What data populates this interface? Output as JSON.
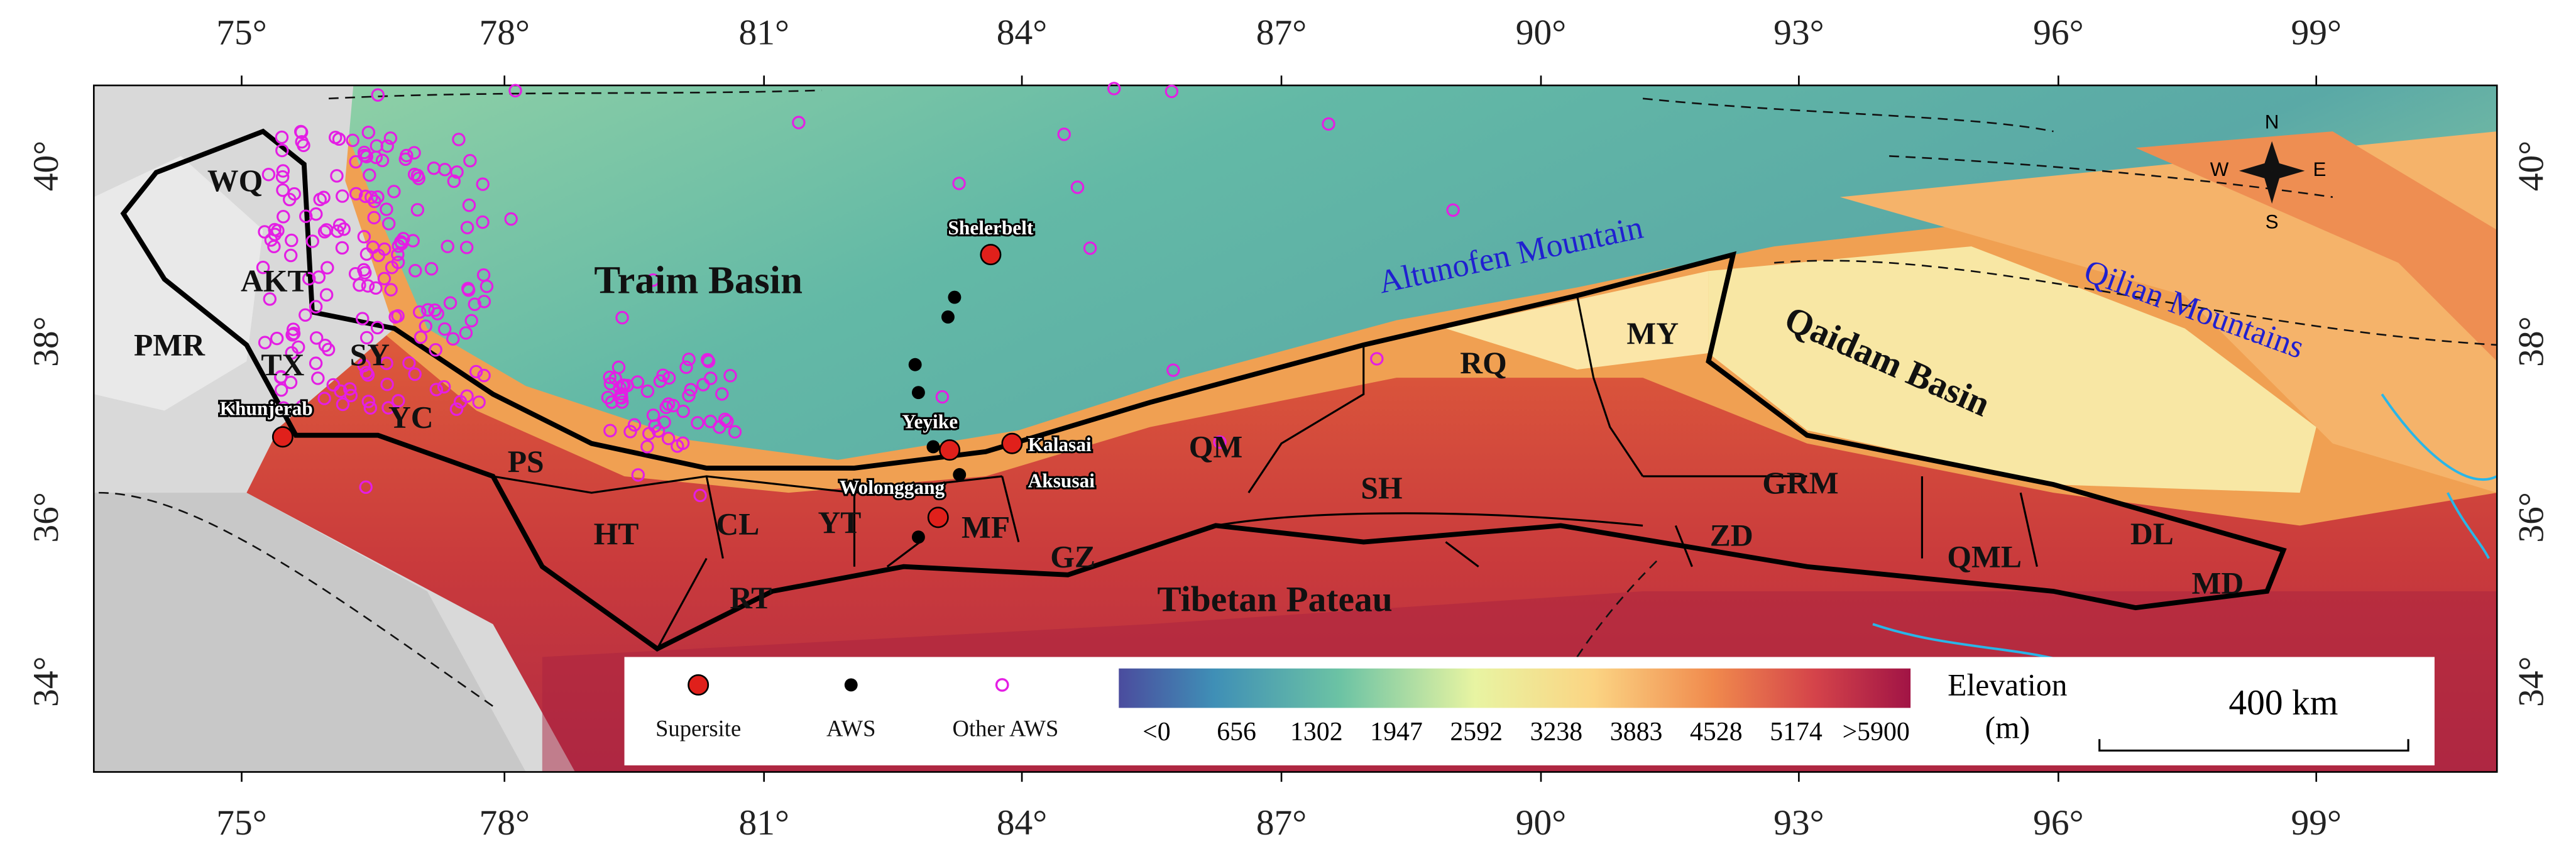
{
  "map": {
    "lon_labels": [
      "75°",
      "78°",
      "81°",
      "84°",
      "87°",
      "90°",
      "93°",
      "96°",
      "99°"
    ],
    "lat_labels": [
      "40°",
      "38°",
      "36°",
      "34°"
    ],
    "regions": [
      "WQ",
      "AKT",
      "PMR",
      "TX",
      "SY",
      "YC",
      "PS",
      "HT",
      "CL",
      "YT",
      "MF",
      "GZ",
      "RT",
      "QM",
      "SH",
      "RQ",
      "MY",
      "GRM",
      "ZD",
      "QML",
      "DL",
      "MD"
    ],
    "basins": [
      "Traim Basin",
      "Qaidam Basin",
      "Tibetan Pateau"
    ],
    "mountains": [
      "Altunofen Mountain",
      "Qilian Mountains"
    ],
    "sites": [
      "Shelerbelt",
      "Yeyike",
      "Kalasai",
      "Aksusai",
      "Wolonggang",
      "Khunjerab"
    ],
    "legend": [
      "Supersite",
      "AWS",
      "Other AWS"
    ],
    "colorbar": {
      "title": "Elevation",
      "unit": "(m)",
      "labels": [
        "<0",
        "656",
        "1302",
        "1947",
        "2592",
        "3238",
        "3883",
        "4528",
        "5174",
        ">5900"
      ]
    },
    "scale_bar": "400 km",
    "compass": [
      "N",
      "W",
      "E",
      "S"
    ]
  }
}
